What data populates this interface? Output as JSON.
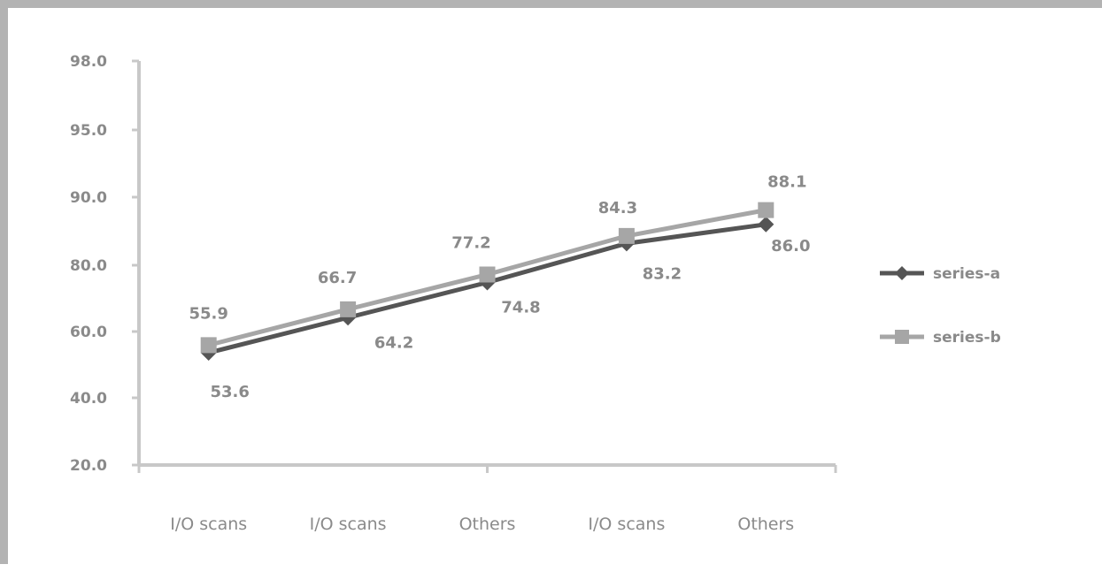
{
  "chart_data": {
    "type": "line",
    "categories": [
      "I/O scans",
      "I/O scans",
      "Others",
      "I/O scans",
      "Others"
    ],
    "yticks": [
      "20.0",
      "40.0",
      "60.0",
      "80.0",
      "90.0",
      "95.0",
      "98.0"
    ],
    "ylim": [
      20,
      98
    ],
    "series": [
      {
        "name": "series-a",
        "color": "#555555",
        "marker": "diamond",
        "values": [
          53.6,
          64.2,
          74.8,
          83.2,
          86.0
        ],
        "labels": [
          "53.6",
          "64.2",
          "74.8",
          "83.2",
          "86.0"
        ]
      },
      {
        "name": "series-b",
        "color": "#a6a6a6",
        "marker": "square",
        "values": [
          55.9,
          66.7,
          77.2,
          84.3,
          88.1
        ],
        "labels": [
          "55.9",
          "66.7",
          "77.2",
          "84.3",
          "88.1"
        ]
      }
    ],
    "grid": false,
    "legend": "right"
  }
}
